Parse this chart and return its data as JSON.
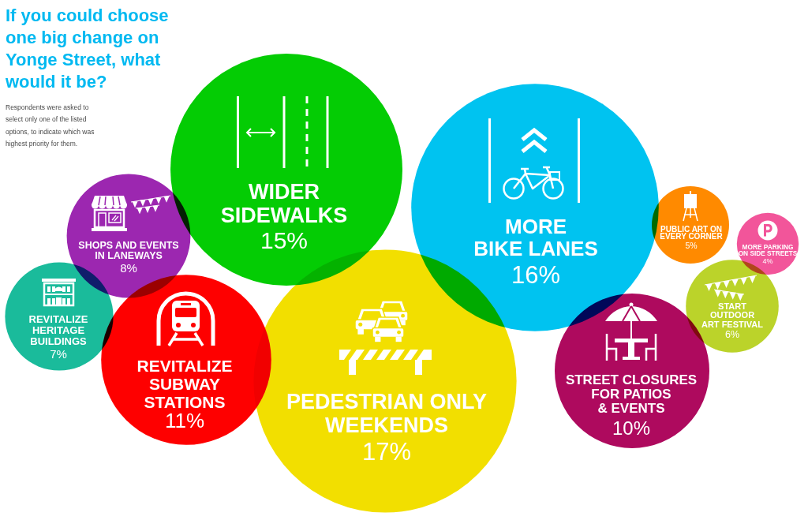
{
  "chart_data": {
    "type": "other",
    "title": "If you could choose one big change on Yonge Street, what would it be?",
    "subtitle": "Respondents were asked to select only one of the listed options, to indicate which was highest priority for them.",
    "categories": [
      "WIDER SIDEWALKS",
      "SHOPS AND EVENTS IN LANEWAYS",
      "REVITALIZE HERITAGE BUILDINGS",
      "REVITALIZE SUBWAY STATIONS",
      "PEDESTRIAN ONLY WEEKENDS",
      "MORE BIKE LANES",
      "PUBLIC ART ON EVERY CORNER",
      "MORE PARKING ON SIDE STREETS",
      "START OUTDOOR ART FESTIVAL",
      "STREET CLOSURES FOR PATIOS & EVENTS"
    ],
    "values": [
      15,
      8,
      7,
      11,
      17,
      16,
      5,
      4,
      6,
      10
    ],
    "value_labels": [
      "15%",
      "8%",
      "7%",
      "11%",
      "17%",
      "16%",
      "5%",
      "4%",
      "6%",
      "10%"
    ],
    "colors": [
      "#04cc04",
      "#9c27b0",
      "#1abb9b",
      "#fe0000",
      "#f2df00",
      "#00c3f0",
      "#ff8a00",
      "#f2559a",
      "#bbd32a",
      "#ae0a5e"
    ]
  }
}
